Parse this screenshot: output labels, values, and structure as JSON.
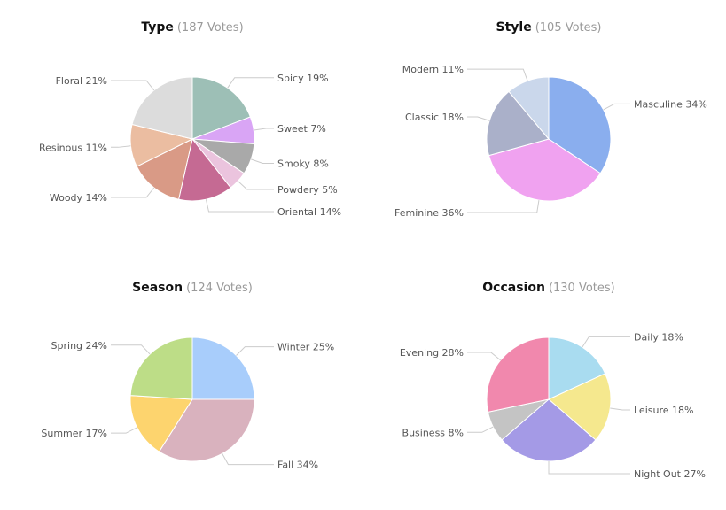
{
  "chart_data": [
    {
      "type": "pie",
      "title": "Type",
      "subtitle": "(187 Votes)",
      "slices": [
        {
          "label": "Spicy",
          "value": 19,
          "text": "Spicy 19%",
          "color": "#9dbfb6"
        },
        {
          "label": "Sweet",
          "value": 7,
          "text": "Sweet 7%",
          "color": "#d9a5f5"
        },
        {
          "label": "Smoky",
          "value": 8,
          "text": "Smoky 8%",
          "color": "#a9a9a9"
        },
        {
          "label": "Powdery",
          "value": 5,
          "text": "Powdery 5%",
          "color": "#ebc4de"
        },
        {
          "label": "Oriental",
          "value": 14,
          "text": "Oriental 14%",
          "color": "#c56a93"
        },
        {
          "label": "Woody",
          "value": 14,
          "text": "Woody 14%",
          "color": "#d99a86"
        },
        {
          "label": "Resinous",
          "value": 11,
          "text": "Resinous 11%",
          "color": "#ebbda1"
        },
        {
          "label": "Floral",
          "value": 21,
          "text": "Floral 21%",
          "color": "#dcdcdc"
        }
      ]
    },
    {
      "type": "pie",
      "title": "Style",
      "subtitle": "(105 Votes)",
      "slices": [
        {
          "label": "Masculine",
          "value": 34,
          "text": "Masculine 34%",
          "color": "#8aaeee"
        },
        {
          "label": "Feminine",
          "value": 36,
          "text": "Feminine 36%",
          "color": "#f0a2f0"
        },
        {
          "label": "Classic",
          "value": 18,
          "text": "Classic 18%",
          "color": "#aab0c9"
        },
        {
          "label": "Modern",
          "value": 11,
          "text": "Modern 11%",
          "color": "#cad7eb"
        }
      ]
    },
    {
      "type": "pie",
      "title": "Season",
      "subtitle": "(124 Votes)",
      "slices": [
        {
          "label": "Winter",
          "value": 25,
          "text": "Winter 25%",
          "color": "#a8cdfb"
        },
        {
          "label": "Fall",
          "value": 34,
          "text": "Fall 34%",
          "color": "#d9b2be"
        },
        {
          "label": "Summer",
          "value": 17,
          "text": "Summer 17%",
          "color": "#fdd46e"
        },
        {
          "label": "Spring",
          "value": 24,
          "text": "Spring 24%",
          "color": "#bddd87"
        }
      ]
    },
    {
      "type": "pie",
      "title": "Occasion",
      "subtitle": "(130 Votes)",
      "slices": [
        {
          "label": "Daily",
          "value": 18,
          "text": "Daily 18%",
          "color": "#a9dcf0"
        },
        {
          "label": "Leisure",
          "value": 18,
          "text": "Leisure 18%",
          "color": "#f5e88e"
        },
        {
          "label": "Night Out",
          "value": 27,
          "text": "Night Out 27%",
          "color": "#a49ae6"
        },
        {
          "label": "Business",
          "value": 8,
          "text": "Business 8%",
          "color": "#c4c4c4"
        },
        {
          "label": "Evening",
          "value": 28,
          "text": "Evening 28%",
          "color": "#f188ad"
        }
      ]
    }
  ]
}
